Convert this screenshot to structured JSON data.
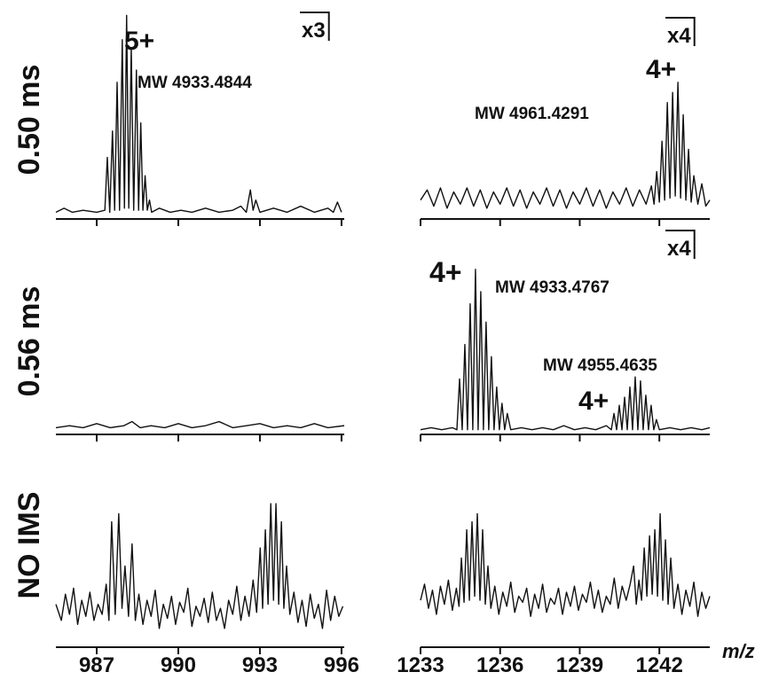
{
  "chart_data": [
    {
      "type": "line",
      "row_label": "0.50 ms",
      "annotations": [
        "5+",
        "x3",
        "MW 4933.4844"
      ],
      "color": "#111111",
      "xlim": [
        985.5,
        996.1
      ],
      "ylim": [
        0,
        100
      ],
      "xticks": [
        987,
        990,
        993,
        996
      ],
      "x": [
        985.5,
        985.8,
        986.1,
        986.5,
        987.0,
        987.3,
        987.39,
        987.48,
        987.58,
        987.66,
        987.75,
        987.84,
        987.94,
        988.02,
        988.1,
        988.18,
        988.27,
        988.36,
        988.46,
        988.54,
        988.62,
        988.7,
        988.78,
        988.86,
        988.94,
        989.02,
        989.3,
        989.7,
        990.1,
        990.5,
        991.0,
        991.5,
        992.0,
        992.3,
        992.5,
        992.65,
        992.75,
        992.85,
        993.0,
        993.5,
        994.0,
        994.5,
        995.0,
        995.5,
        995.7,
        995.85,
        996.0
      ],
      "values": [
        2,
        4,
        2,
        3,
        2,
        3,
        29,
        2,
        42,
        3,
        66,
        3,
        87,
        4,
        99,
        4,
        83,
        3,
        72,
        3,
        46,
        3,
        20,
        3,
        8,
        2,
        4,
        2,
        3,
        2,
        4,
        2,
        3,
        5,
        2,
        13,
        3,
        8,
        2,
        4,
        2,
        5,
        2,
        4,
        2,
        7,
        2
      ]
    },
    {
      "type": "line",
      "annotations": [
        "x4",
        "4+",
        "MW 4961.4291"
      ],
      "color": "#111111",
      "xlim": [
        1233,
        1243.9
      ],
      "ylim": [
        0,
        100
      ],
      "xticks": [
        1233,
        1236,
        1239,
        1242
      ],
      "x": [
        1233.0,
        1233.25,
        1233.5,
        1233.75,
        1234.0,
        1234.25,
        1234.5,
        1234.75,
        1235.0,
        1235.25,
        1235.5,
        1235.75,
        1236.0,
        1236.25,
        1236.5,
        1236.75,
        1237.0,
        1237.25,
        1237.5,
        1237.75,
        1238.0,
        1238.25,
        1238.5,
        1238.75,
        1239.0,
        1239.25,
        1239.5,
        1239.75,
        1240.0,
        1240.25,
        1240.5,
        1240.75,
        1241.0,
        1241.25,
        1241.5,
        1241.7,
        1241.8,
        1241.9,
        1242.0,
        1242.1,
        1242.2,
        1242.3,
        1242.4,
        1242.5,
        1242.6,
        1242.7,
        1242.8,
        1242.9,
        1243.0,
        1243.1,
        1243.2,
        1243.3,
        1243.45,
        1243.6,
        1243.75,
        1243.9
      ],
      "values": [
        8,
        13,
        5,
        14,
        4,
        12,
        6,
        14,
        5,
        13,
        4,
        12,
        6,
        14,
        5,
        13,
        4,
        12,
        6,
        14,
        5,
        13,
        4,
        12,
        6,
        14,
        5,
        13,
        4,
        12,
        6,
        14,
        5,
        13,
        6,
        15,
        6,
        22,
        7,
        37,
        8,
        56,
        9,
        61,
        10,
        66,
        9,
        50,
        8,
        33,
        7,
        20,
        6,
        16,
        5,
        8
      ]
    },
    {
      "type": "line",
      "row_label": "0.56 ms",
      "color": "#111111",
      "xlim": [
        985.5,
        996.1
      ],
      "ylim": [
        0,
        100
      ],
      "xticks": [
        987,
        990,
        993,
        996
      ],
      "x": [
        985.5,
        986.0,
        986.5,
        987.0,
        987.5,
        988.0,
        988.3,
        988.6,
        989.0,
        989.5,
        990.0,
        990.5,
        991.0,
        991.5,
        992.0,
        992.5,
        993.0,
        993.5,
        994.0,
        994.5,
        995.0,
        995.5,
        996.1
      ],
      "values": [
        2,
        3,
        2,
        4,
        2,
        3,
        5,
        2,
        3,
        2,
        4,
        2,
        3,
        5,
        2,
        3,
        4,
        2,
        3,
        2,
        4,
        2,
        3
      ]
    },
    {
      "type": "line",
      "annotations": [
        "x4",
        "4+",
        "MW 4933.4767",
        "MW 4955.4635",
        "4+"
      ],
      "color": "#111111",
      "xlim": [
        1233,
        1243.9
      ],
      "ylim": [
        0,
        100
      ],
      "xticks": [
        1233,
        1236,
        1239,
        1242
      ],
      "x": [
        1233.0,
        1233.4,
        1233.8,
        1234.2,
        1234.37,
        1234.47,
        1234.57,
        1234.67,
        1234.77,
        1234.87,
        1234.97,
        1235.07,
        1235.17,
        1235.27,
        1235.37,
        1235.47,
        1235.57,
        1235.67,
        1235.77,
        1235.87,
        1235.97,
        1236.07,
        1236.17,
        1236.27,
        1236.4,
        1236.8,
        1237.2,
        1237.6,
        1238.0,
        1238.4,
        1238.8,
        1239.2,
        1239.6,
        1240.0,
        1240.19,
        1240.29,
        1240.39,
        1240.49,
        1240.59,
        1240.69,
        1240.79,
        1240.89,
        1240.99,
        1241.09,
        1241.19,
        1241.29,
        1241.39,
        1241.49,
        1241.59,
        1241.69,
        1241.79,
        1241.89,
        1242.0,
        1242.4,
        1242.8,
        1243.2,
        1243.6,
        1243.9
      ],
      "values": [
        1,
        2,
        1,
        2,
        1,
        26,
        1,
        43,
        1,
        63,
        1,
        80,
        1,
        69,
        1,
        54,
        1,
        37,
        1,
        22,
        1,
        14,
        1,
        9,
        1,
        2,
        1,
        2,
        1,
        3,
        1,
        2,
        1,
        3,
        1,
        9,
        1,
        13,
        1,
        17,
        1,
        22,
        1,
        27,
        1,
        25,
        1,
        18,
        1,
        13,
        1,
        6,
        1,
        2,
        1,
        2,
        1,
        2
      ]
    },
    {
      "type": "line",
      "row_label": "NO IMS",
      "color": "#111111",
      "xlim": [
        985.5,
        996.1
      ],
      "ylim": [
        0,
        100
      ],
      "xticks": [
        987,
        990,
        993,
        996
      ],
      "x": [
        985.5,
        985.7,
        985.85,
        986.0,
        986.15,
        986.3,
        986.45,
        986.6,
        986.75,
        986.9,
        987.05,
        987.2,
        987.35,
        987.45,
        987.55,
        987.68,
        987.81,
        987.93,
        988.04,
        988.17,
        988.3,
        988.42,
        988.55,
        988.7,
        988.85,
        989.0,
        989.15,
        989.3,
        989.45,
        989.6,
        989.75,
        989.9,
        990.05,
        990.2,
        990.35,
        990.5,
        990.65,
        990.8,
        990.95,
        991.1,
        991.25,
        991.4,
        991.55,
        991.7,
        991.85,
        992.0,
        992.15,
        992.3,
        992.45,
        992.6,
        992.75,
        992.88,
        993.01,
        993.1,
        993.2,
        993.3,
        993.4,
        993.5,
        993.59,
        993.69,
        993.79,
        993.88,
        993.98,
        994.1,
        994.25,
        994.4,
        994.55,
        994.7,
        994.85,
        995.0,
        995.15,
        995.3,
        995.45,
        995.6,
        995.75,
        995.9,
        996.05
      ],
      "values": [
        20,
        12,
        25,
        15,
        28,
        10,
        22,
        14,
        26,
        12,
        20,
        15,
        30,
        12,
        61,
        15,
        65,
        18,
        39,
        14,
        50,
        12,
        25,
        10,
        22,
        14,
        27,
        8,
        20,
        13,
        24,
        10,
        21,
        16,
        28,
        9,
        19,
        14,
        23,
        11,
        26,
        12,
        18,
        8,
        22,
        15,
        29,
        12,
        24,
        14,
        32,
        16,
        48,
        18,
        57,
        20,
        70,
        22,
        70,
        20,
        61,
        18,
        39,
        15,
        26,
        11,
        22,
        9,
        25,
        13,
        20,
        8,
        27,
        12,
        24,
        14,
        19
      ]
    },
    {
      "type": "line",
      "xlabel": "m/z",
      "color": "#111111",
      "xlim": [
        1233,
        1243.9
      ],
      "ylim": [
        0,
        100
      ],
      "xticks": [
        1233,
        1236,
        1239,
        1242
      ],
      "x": [
        1233.0,
        1233.15,
        1233.3,
        1233.45,
        1233.6,
        1233.75,
        1233.9,
        1234.05,
        1234.2,
        1234.35,
        1234.45,
        1234.54,
        1234.64,
        1234.74,
        1234.84,
        1234.94,
        1235.04,
        1235.14,
        1235.24,
        1235.34,
        1235.44,
        1235.54,
        1235.65,
        1235.8,
        1235.95,
        1236.1,
        1236.25,
        1236.4,
        1236.55,
        1236.7,
        1236.85,
        1237.0,
        1237.15,
        1237.3,
        1237.45,
        1237.6,
        1237.75,
        1237.9,
        1238.05,
        1238.2,
        1238.35,
        1238.5,
        1238.65,
        1238.8,
        1238.95,
        1239.1,
        1239.25,
        1239.4,
        1239.55,
        1239.7,
        1239.85,
        1240.0,
        1240.15,
        1240.3,
        1240.45,
        1240.6,
        1240.75,
        1240.9,
        1241.03,
        1241.13,
        1241.23,
        1241.33,
        1241.43,
        1241.53,
        1241.63,
        1241.73,
        1241.83,
        1241.93,
        1242.03,
        1242.13,
        1242.23,
        1242.33,
        1242.43,
        1242.55,
        1242.7,
        1242.85,
        1243.0,
        1243.15,
        1243.3,
        1243.45,
        1243.6,
        1243.75,
        1243.9
      ],
      "values": [
        22,
        30,
        18,
        27,
        15,
        29,
        20,
        32,
        17,
        28,
        19,
        43,
        21,
        57,
        22,
        61,
        24,
        65,
        22,
        57,
        20,
        39,
        18,
        29,
        15,
        26,
        19,
        31,
        16,
        24,
        21,
        28,
        14,
        25,
        18,
        30,
        16,
        23,
        20,
        28,
        15,
        26,
        19,
        29,
        17,
        25,
        21,
        31,
        18,
        27,
        16,
        24,
        20,
        33,
        18,
        29,
        22,
        30,
        39,
        20,
        32,
        22,
        48,
        24,
        54,
        25,
        57,
        24,
        65,
        22,
        52,
        20,
        43,
        18,
        30,
        15,
        27,
        19,
        31,
        14,
        26,
        18,
        24
      ]
    }
  ]
}
